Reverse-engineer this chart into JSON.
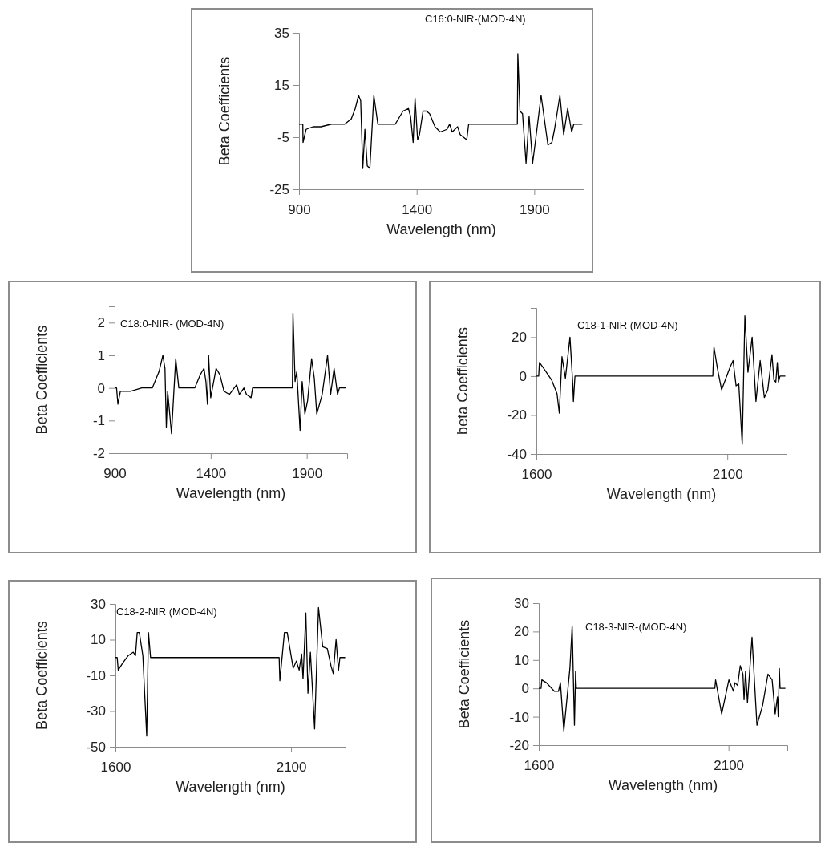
{
  "chart_data": [
    {
      "type": "line",
      "title": "C16:0-NIR-(MOD-4N)",
      "xlabel": "Wavelength (nm)",
      "ylabel": "Beta Coefficients",
      "xlim": [
        900,
        2110
      ],
      "xticks": [
        900,
        1400,
        1900
      ],
      "ylim": [
        -25,
        35
      ],
      "yticks": [
        -25,
        -5,
        15,
        35
      ],
      "line_style": "solid",
      "series": [
        {
          "color": "#000000",
          "x": [
            900,
            916,
            917,
            930,
            959,
            993,
            1038,
            1094,
            1122,
            1139,
            1153,
            1162,
            1171,
            1180,
            1190,
            1201,
            1218,
            1235,
            1263,
            1309,
            1342,
            1365,
            1374,
            1385,
            1393,
            1404,
            1412,
            1427,
            1442,
            1455,
            1478,
            1500,
            1529,
            1540,
            1551,
            1574,
            1585,
            1613,
            1621,
            1828,
            1830,
            1839,
            1850,
            1865,
            1878,
            1893,
            1907,
            1929,
            1958,
            1975,
            1986,
            2009,
            2025,
            2042,
            2059,
            2068,
            2104
          ],
          "values": [
            0,
            0,
            -7,
            -2,
            -1,
            -1,
            0,
            0,
            2,
            6,
            11,
            9,
            -17,
            -2,
            -16,
            -17,
            11,
            0,
            0,
            0,
            5,
            6,
            3,
            -7,
            10,
            -6,
            -4,
            5,
            5,
            4,
            -1,
            -3,
            -2,
            0,
            -3,
            -1,
            -4,
            -6,
            0,
            0,
            27,
            5,
            4,
            -15,
            3,
            -15,
            -5,
            11,
            -8,
            -7,
            -2,
            11,
            -4,
            6,
            -3,
            0,
            0
          ]
        }
      ]
    },
    {
      "type": "line",
      "title": "C18:0-NIR- (MOD-4N)",
      "xlabel": "Wavelength (nm)",
      "ylabel": "Beta Coefficients",
      "xlim": [
        900,
        2110
      ],
      "xticks": [
        900,
        1400,
        1900
      ],
      "ylim": [
        -2,
        2.5
      ],
      "yticks": [
        -2,
        -1,
        0,
        1,
        2
      ],
      "line_style": "solid",
      "series": [
        {
          "color": "#000000",
          "x": [
            900,
            910,
            917,
            930,
            986,
            1041,
            1096,
            1131,
            1151,
            1162,
            1169,
            1176,
            1196,
            1218,
            1234,
            1317,
            1345,
            1365,
            1375,
            1383,
            1389,
            1400,
            1428,
            1448,
            1469,
            1497,
            1535,
            1549,
            1573,
            1586,
            1610,
            1618,
            1825,
            1828,
            1839,
            1848,
            1865,
            1876,
            1890,
            1904,
            1925,
            1939,
            1952,
            1980,
            2008,
            2024,
            2042,
            2060,
            2070,
            2102
          ],
          "values": [
            0,
            0,
            -0.5,
            -0.1,
            -0.1,
            0,
            0,
            0.5,
            1,
            0.6,
            -1.2,
            -0.1,
            -1.4,
            0.9,
            0,
            0,
            0.4,
            0.6,
            0.2,
            -0.5,
            1,
            -0.3,
            0.6,
            0.4,
            -0.1,
            -0.2,
            0.1,
            -0.2,
            0,
            -0.2,
            -0.3,
            0,
            0,
            2.3,
            0.2,
            0.5,
            -1.3,
            0.2,
            -0.8,
            -0.4,
            0.9,
            0.3,
            -0.8,
            -0.2,
            1,
            -0.2,
            0.6,
            -0.2,
            0,
            0
          ]
        }
      ]
    },
    {
      "type": "line",
      "title": "C18-1-NIR (MOD-4N)",
      "xlabel": "Wavelength (nm)",
      "ylabel": "beta Coefficients",
      "xlim": [
        1600,
        2255
      ],
      "xticks": [
        1600,
        2100
      ],
      "ylim": [
        -40,
        35
      ],
      "yticks": [
        -40,
        -20,
        0,
        20
      ],
      "line_style": "solid",
      "series": [
        {
          "color": "#000000",
          "x": [
            1600,
            1606,
            1608,
            1619,
            1640,
            1654,
            1660,
            1667,
            1676,
            1688,
            1695,
            1697,
            1701,
            2062,
            2065,
            2074,
            2085,
            2106,
            2115,
            2123,
            2130,
            2139,
            2146,
            2154,
            2165,
            2175,
            2186,
            2197,
            2206,
            2217,
            2222,
            2227,
            2231,
            2234,
            2238,
            2252
          ],
          "values": [
            0,
            0,
            7,
            4,
            -2,
            -9,
            -19,
            10,
            -1,
            20,
            -3,
            -13,
            0,
            0,
            15,
            4,
            -7,
            4,
            8,
            -5,
            -4,
            -35,
            31,
            2,
            20,
            -13,
            8,
            -11,
            -7,
            11,
            -2,
            -3,
            7,
            -3,
            0,
            0
          ]
        }
      ]
    },
    {
      "type": "line",
      "title": "C18-2-NIR  (MOD-4N)",
      "xlabel": "Wavelength (nm)",
      "ylabel": "Beta Coefficients",
      "xlim": [
        1600,
        2255
      ],
      "xticks": [
        1600,
        2100
      ],
      "ylim": [
        -50,
        30
      ],
      "yticks": [
        -50,
        -30,
        -10,
        10,
        30
      ],
      "line_style": "solid",
      "series": [
        {
          "color": "#000000",
          "x": [
            1600,
            1605,
            1608,
            1621,
            1636,
            1651,
            1657,
            1662,
            1668,
            1678,
            1689,
            1694,
            1700,
            2066,
            2068,
            2081,
            2089,
            2106,
            2115,
            2123,
            2130,
            2134,
            2142,
            2148,
            2155,
            2167,
            2178,
            2190,
            2203,
            2214,
            2220,
            2228,
            2235,
            2239,
            2254
          ],
          "values": [
            0,
            0,
            -7,
            -3,
            1,
            3,
            1,
            14,
            14,
            1,
            -44,
            14,
            0,
            0,
            -13,
            14,
            14,
            -6,
            -2,
            -7,
            2,
            -12,
            25,
            -20,
            3,
            -40,
            28,
            6,
            5,
            -5,
            -9,
            10,
            -7,
            0,
            0
          ]
        }
      ]
    },
    {
      "type": "line",
      "title": "C18-3-NIR-(MOD-4N)",
      "xlabel": "Wavelength (nm)",
      "ylabel": "Beta Coefficients",
      "xlim": [
        1600,
        2255
      ],
      "xticks": [
        1600,
        2100
      ],
      "ylim": [
        -20,
        30
      ],
      "yticks": [
        -20,
        -10,
        0,
        10,
        20,
        30
      ],
      "line_style": "solid",
      "series": [
        {
          "color": "#000000",
          "x": [
            1600,
            1606,
            1608,
            1620,
            1641,
            1652,
            1657,
            1666,
            1682,
            1688,
            1694,
            1697,
            1699,
            2064,
            2066,
            2082,
            2101,
            2113,
            2117,
            2124,
            2131,
            2138,
            2141,
            2145,
            2150,
            2162,
            2175,
            2190,
            2204,
            2215,
            2223,
            2229,
            2231,
            2234,
            2236,
            2250
          ],
          "values": [
            0,
            0,
            3,
            2,
            -1,
            -1,
            2,
            -15,
            7,
            22,
            -13,
            6,
            0,
            0,
            3,
            -9,
            3,
            -1,
            2,
            1,
            8,
            5,
            -4,
            6,
            -5,
            18,
            -13,
            -6,
            5,
            3,
            -9,
            -3,
            -10,
            7,
            0,
            0
          ]
        }
      ]
    }
  ]
}
